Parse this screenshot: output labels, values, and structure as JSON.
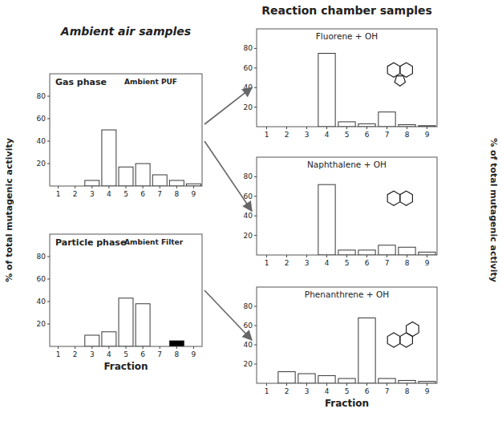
{
  "chart_data": [
    {
      "type": "bar",
      "title": "Gas phase",
      "subtitle": "Ambient PUF",
      "annotation": "Ambient air samples",
      "ylabel": "% of total mutagenic activity",
      "x": [
        1,
        2,
        3,
        4,
        5,
        6,
        7,
        8,
        9
      ],
      "values": [
        0,
        0,
        5,
        50,
        17,
        20,
        10,
        5,
        2
      ],
      "color": "white",
      "xlim": [
        0.5,
        9.5
      ],
      "xticks": [
        1,
        2,
        3,
        4,
        5,
        6,
        7,
        8,
        9
      ],
      "ylim": [
        0,
        100
      ],
      "yticks": [
        20,
        40,
        60,
        80
      ],
      "grid": false
    },
    {
      "type": "bar",
      "title": "Particle phase",
      "subtitle": "Ambient Filter",
      "xlabel": "Fraction",
      "x": [
        1,
        2,
        3,
        4,
        5,
        6,
        7,
        8,
        9
      ],
      "values": [
        0,
        0,
        10,
        13,
        43,
        38,
        0,
        5,
        0
      ],
      "colors": [
        "white",
        "white",
        "white",
        "white",
        "white",
        "white",
        "white",
        "black",
        "white"
      ],
      "xlim": [
        0.5,
        9.5
      ],
      "xticks": [
        1,
        2,
        3,
        4,
        5,
        6,
        7,
        8,
        9
      ],
      "ylim": [
        0,
        100
      ],
      "yticks": [
        20,
        40,
        60,
        80
      ],
      "grid": false
    },
    {
      "type": "bar",
      "title": "Fluorene + OH",
      "annotation": "Reaction chamber samples",
      "ylabel": "% of total mutagenic activity",
      "x": [
        1,
        2,
        3,
        4,
        5,
        6,
        7,
        8,
        9
      ],
      "values": [
        0,
        0,
        0,
        75,
        5,
        3,
        15,
        2,
        1
      ],
      "color": "white",
      "xlim": [
        0.5,
        9.5
      ],
      "xticks": [
        1,
        2,
        3,
        4,
        5,
        6,
        7,
        8,
        9
      ],
      "ylim": [
        0,
        100
      ],
      "yticks": [
        20,
        40,
        60,
        80
      ],
      "grid": false
    },
    {
      "type": "bar",
      "title": "Naphthalene + OH",
      "x": [
        1,
        2,
        3,
        4,
        5,
        6,
        7,
        8,
        9
      ],
      "values": [
        0,
        0,
        0,
        72,
        5,
        5,
        10,
        8,
        3
      ],
      "color": "white",
      "xlim": [
        0.5,
        9.5
      ],
      "xticks": [
        1,
        2,
        3,
        4,
        5,
        6,
        7,
        8,
        9
      ],
      "ylim": [
        0,
        100
      ],
      "yticks": [
        20,
        40,
        60,
        80
      ],
      "grid": false
    },
    {
      "type": "bar",
      "title": "Phenanthrene + OH",
      "xlabel": "Fraction",
      "x": [
        1,
        2,
        3,
        4,
        5,
        6,
        7,
        8,
        9
      ],
      "values": [
        0,
        12,
        10,
        8,
        5,
        68,
        5,
        3,
        2
      ],
      "color": "white",
      "xlim": [
        0.5,
        9.5
      ],
      "xticks": [
        1,
        2,
        3,
        4,
        5,
        6,
        7,
        8,
        9
      ],
      "ylim": [
        0,
        100
      ],
      "yticks": [
        20,
        40,
        60,
        80
      ],
      "grid": false
    }
  ]
}
